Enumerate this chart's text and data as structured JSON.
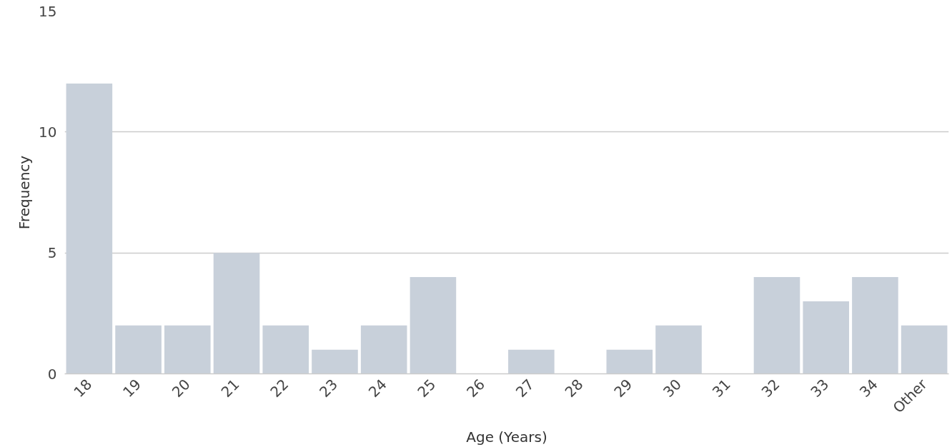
{
  "chart_data": {
    "type": "bar",
    "xlabel": "Age (Years)",
    "ylabel": "Frequency",
    "categories": [
      "18",
      "19",
      "20",
      "21",
      "22",
      "23",
      "24",
      "25",
      "26",
      "27",
      "28",
      "29",
      "30",
      "31",
      "32",
      "33",
      "34",
      "Other"
    ],
    "values": [
      12,
      2,
      2,
      5,
      2,
      1,
      2,
      4,
      0,
      1,
      0,
      1,
      2,
      0,
      4,
      3,
      4,
      2
    ],
    "color": "#c8d0da",
    "ylim": [
      0,
      15
    ],
    "yticks": [
      0,
      5,
      10,
      15
    ],
    "grid": "y"
  }
}
